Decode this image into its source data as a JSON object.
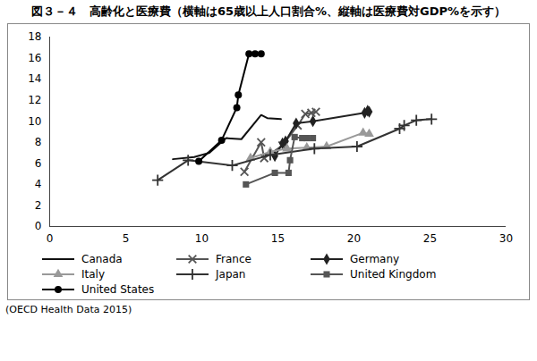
{
  "chart_data": {
    "type": "line",
    "title": "図３－４　高齢化と医療費（横軸は65歳以上人口割合%、縦軸は医療費対GDP%を示す）",
    "caption": "(OECD Health Data 2015)",
    "xlim": [
      0,
      30
    ],
    "xticks": [
      0,
      5,
      10,
      15,
      20,
      25,
      30
    ],
    "ylim": [
      0,
      18
    ],
    "yticks": [
      0,
      2,
      4,
      6,
      8,
      10,
      12,
      14,
      16,
      18
    ],
    "legend": "bottom",
    "series": [
      {
        "name": "Canada",
        "color": "#111111",
        "marker": "none",
        "x": [
          8.1,
          9.5,
          10.5,
          11.6,
          12.6,
          13.9,
          14.3,
          15.2
        ],
        "values": [
          6.4,
          6.6,
          7.0,
          8.4,
          8.3,
          10.6,
          10.3,
          10.2
        ]
      },
      {
        "name": "France",
        "color": "#555555",
        "marker": "times",
        "x": [
          12.8,
          13.9,
          14.1,
          15.3,
          16.3,
          16.8,
          17.2,
          17.5
        ],
        "values": [
          5.2,
          8.0,
          6.5,
          7.7,
          9.6,
          10.7,
          10.8,
          10.9
        ]
      },
      {
        "name": "Germany",
        "color": "#222222",
        "marker": "diamond",
        "x": [
          14.8,
          15.3,
          15.5,
          16.2,
          17.3,
          20.7,
          20.9,
          21.0
        ],
        "values": [
          6.7,
          7.9,
          8.1,
          9.8,
          10.0,
          10.8,
          11.0,
          10.9
        ]
      },
      {
        "name": "Italy",
        "color": "#999999",
        "marker": "triangle",
        "x": [
          13.2,
          14.5,
          15.6,
          16.9,
          18.2,
          20.6,
          21.0
        ],
        "values": [
          6.5,
          7.1,
          7.4,
          7.5,
          7.6,
          8.9,
          8.8
        ]
      },
      {
        "name": "Japan",
        "color": "#333333",
        "marker": "plus",
        "x": [
          7.1,
          9.1,
          12.0,
          14.5,
          17.4,
          20.2,
          23.0,
          23.3,
          24.1,
          25.1
        ],
        "values": [
          4.4,
          6.3,
          5.8,
          6.8,
          7.4,
          7.6,
          9.3,
          9.6,
          10.1,
          10.2
        ]
      },
      {
        "name": "United Kingdom",
        "color": "#555555",
        "marker": "square",
        "x": [
          12.9,
          14.8,
          15.7,
          15.8,
          16.1,
          16.6,
          16.9,
          17.3
        ],
        "values": [
          4.0,
          5.1,
          5.1,
          6.3,
          8.5,
          8.4,
          8.4,
          8.4
        ]
      },
      {
        "name": "United States",
        "color": "#000000",
        "marker": "circle",
        "x": [
          9.8,
          11.3,
          12.3,
          12.4,
          13.1,
          13.5,
          13.9
        ],
        "values": [
          6.2,
          8.2,
          11.3,
          12.5,
          16.4,
          16.4,
          16.4
        ]
      }
    ]
  }
}
